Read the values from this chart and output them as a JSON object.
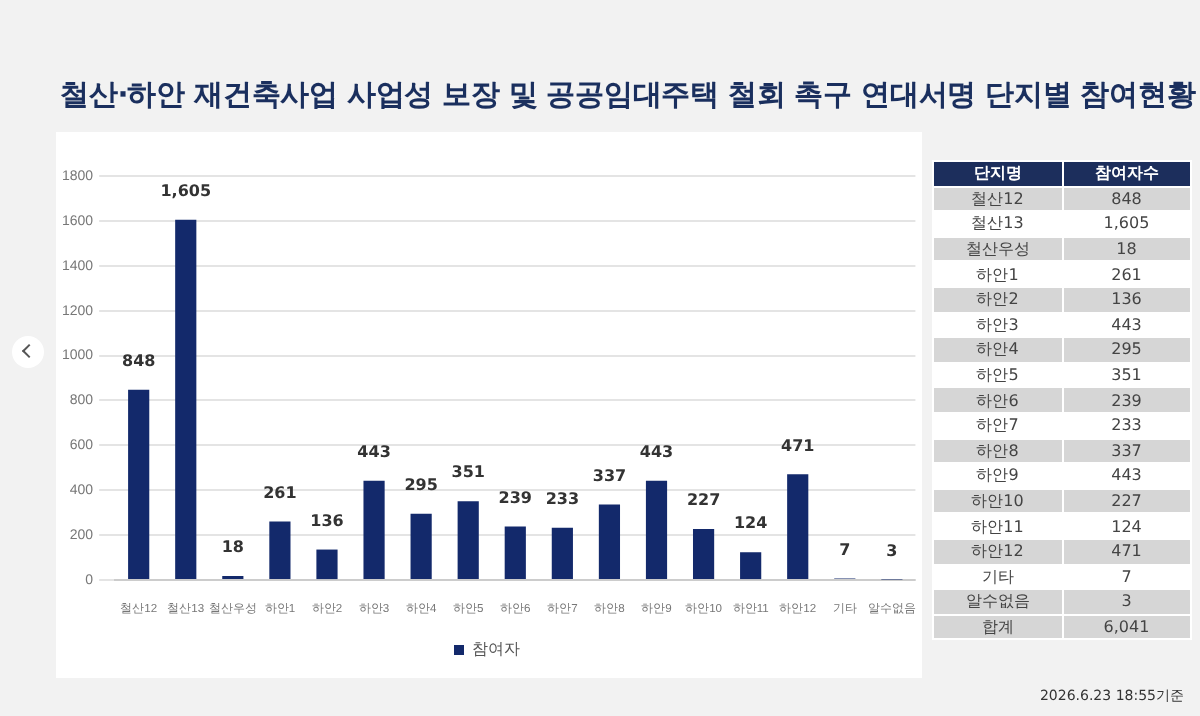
{
  "chart_data": {
    "type": "bar",
    "title": "철산·하안 재건축사업 사업성 보장 및 공공임대주택 철회 촉구 연대서명 단지별 참여현황",
    "categories": [
      "철산12",
      "철산13",
      "철산우성",
      "하안1",
      "하안2",
      "하안3",
      "하안4",
      "하안5",
      "하안6",
      "하안7",
      "하안8",
      "하안9",
      "하안10",
      "하안11",
      "하안12",
      "기타",
      "알수없음"
    ],
    "series": [
      {
        "name": "참여자",
        "color": "#13296b",
        "values": [
          848,
          1605,
          18,
          261,
          136,
          443,
          295,
          351,
          239,
          233,
          337,
          443,
          227,
          124,
          471,
          7,
          3
        ],
        "value_labels": [
          "848",
          "1,605",
          "18",
          "261",
          "136",
          "443",
          "295",
          "351",
          "239",
          "233",
          "337",
          "443",
          "227",
          "124",
          "471",
          "7",
          "3"
        ]
      }
    ],
    "ylim": [
      0,
      1800
    ],
    "yticks": [
      0,
      200,
      400,
      600,
      800,
      1000,
      1200,
      1400,
      1600,
      1800
    ],
    "grid": "y",
    "legend": "bottom",
    "annotations": [
      "단지명",
      "참여자수",
      "합계",
      "6,041",
      "2026.6.23  18:55기준"
    ]
  }
}
